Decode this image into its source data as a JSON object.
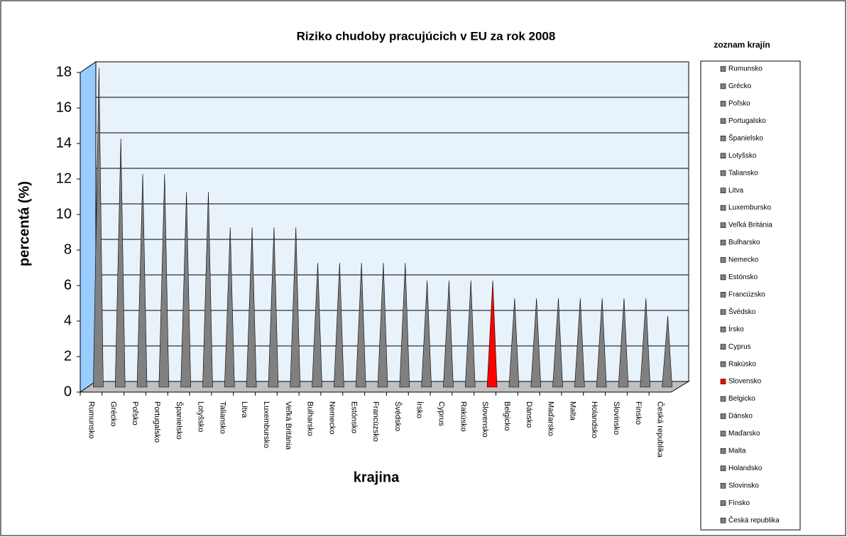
{
  "chart_data": {
    "type": "cone",
    "title": "Riziko chudoby pracujúcich v EU za rok 2008",
    "x_label": "krajina",
    "y_label": "percentá (%)",
    "legend_title": "zoznam krajín",
    "categories": [
      "Rumunsko",
      "Grécko",
      "Poľsko",
      "Portugalsko",
      "Španielsko",
      "Lotyšsko",
      "Taliansko",
      "Litva",
      "Luxembursko",
      "Veľká Británia",
      "Bulharsko",
      "Nemecko",
      "Estónsko",
      "Francúzsko",
      "Švédsko",
      "Írsko",
      "Cyprus",
      "Rakúsko",
      "Slovensko",
      "Belgicko",
      "Dánsko",
      "Maďarsko",
      "Malta",
      "Holandsko",
      "Slovinsko",
      "Fínsko",
      "Česká republika"
    ],
    "values": [
      18,
      14,
      12,
      12,
      11,
      11,
      9,
      9,
      9,
      9,
      7,
      7,
      7,
      7,
      7,
      6,
      6,
      6,
      6,
      5,
      5,
      5,
      5,
      5,
      5,
      5,
      4
    ],
    "colors": [
      "#808080",
      "#808080",
      "#808080",
      "#808080",
      "#808080",
      "#808080",
      "#808080",
      "#808080",
      "#808080",
      "#808080",
      "#808080",
      "#808080",
      "#808080",
      "#808080",
      "#808080",
      "#808080",
      "#808080",
      "#808080",
      "#ff0000",
      "#808080",
      "#808080",
      "#808080",
      "#808080",
      "#808080",
      "#808080",
      "#808080",
      "#808080"
    ],
    "ylim": [
      0,
      18
    ],
    "yticks": [
      0,
      2,
      4,
      6,
      8,
      10,
      12,
      14,
      16,
      18
    ],
    "grid": true
  }
}
